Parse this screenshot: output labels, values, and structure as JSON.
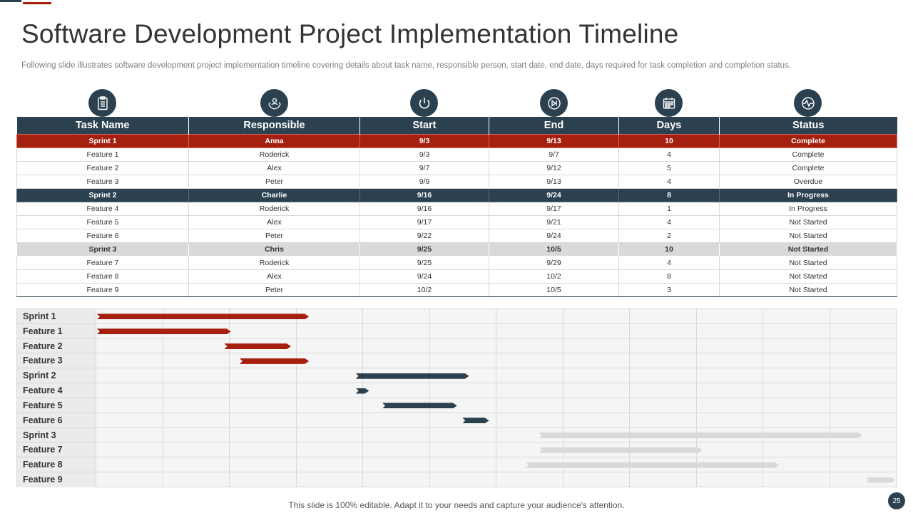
{
  "title": "Software Development Project Implementation Timeline",
  "subtitle": "Following slide illustrates software development project implementation timeline covering details about task name, responsible person, start date, end date, days required for task completion and completion status.",
  "columns": [
    "Task Name",
    "Responsible",
    "Start",
    "End",
    "Days",
    "Status"
  ],
  "column_icons": [
    "clipboard-icon",
    "team-hands-icon",
    "power-icon",
    "skip-next-icon",
    "calendar-icon",
    "heartbeat-icon"
  ],
  "rows": [
    {
      "type": "sprint",
      "style": "red",
      "task": "Sprint 1",
      "responsible": "Anna",
      "start": "9/3",
      "end": "9/13",
      "days": "10",
      "status": "Complete"
    },
    {
      "type": "feature",
      "task": "Feature 1",
      "responsible": "Roderick",
      "start": "9/3",
      "end": "9/7",
      "days": "4",
      "status": "Complete"
    },
    {
      "type": "feature",
      "task": "Feature 2",
      "responsible": "Alex",
      "start": "9/7",
      "end": "9/12",
      "days": "5",
      "status": "Complete"
    },
    {
      "type": "feature",
      "task": "Feature 3",
      "responsible": "Peter",
      "start": "9/9",
      "end": "9/13",
      "days": "4",
      "status": "Overdue"
    },
    {
      "type": "sprint",
      "style": "dark",
      "task": "Sprint 2",
      "responsible": "Charlie",
      "start": "9/16",
      "end": "9/24",
      "days": "8",
      "status": "In Progress"
    },
    {
      "type": "feature",
      "task": "Feature 4",
      "responsible": "Roderick",
      "start": "9/16",
      "end": "9/17",
      "days": "1",
      "status": "In Progress"
    },
    {
      "type": "feature",
      "task": "Feature 5",
      "responsible": "Alex",
      "start": "9/17",
      "end": "9/21",
      "days": "4",
      "status": "Not Started"
    },
    {
      "type": "feature",
      "task": "Feature 6",
      "responsible": "Peter",
      "start": "9/22",
      "end": "9/24",
      "days": "2",
      "status": "Not Started"
    },
    {
      "type": "sprint",
      "style": "gray",
      "task": "Sprint 3",
      "responsible": "Chris",
      "start": "9/25",
      "end": "10/5",
      "days": "10",
      "status": "Not Started"
    },
    {
      "type": "feature",
      "task": "Feature 7",
      "responsible": "Roderick",
      "start": "9/25",
      "end": "9/29",
      "days": "4",
      "status": "Not Started"
    },
    {
      "type": "feature",
      "task": "Feature 8",
      "responsible": "Alex",
      "start": "9/24",
      "end": "10/2",
      "days": "8",
      "status": "Not Started"
    },
    {
      "type": "feature",
      "task": "Feature 9",
      "responsible": "Peter",
      "start": "10/2",
      "end": "10/5",
      "days": "3",
      "status": "Not Started"
    }
  ],
  "gantt": {
    "columns": 12,
    "rows": [
      {
        "label": "Sprint 1",
        "start": 0.02,
        "end": 3.2,
        "color": "#a5200f"
      },
      {
        "label": "Feature 1",
        "start": 0.02,
        "end": 2.03,
        "color": "#a5200f"
      },
      {
        "label": "Feature 2",
        "start": 1.93,
        "end": 2.93,
        "color": "#a5200f"
      },
      {
        "label": "Feature 3",
        "start": 2.16,
        "end": 3.2,
        "color": "#a5200f"
      },
      {
        "label": "Sprint 2",
        "start": 3.9,
        "end": 5.6,
        "color": "#2b4150"
      },
      {
        "label": "Feature 4",
        "start": 3.9,
        "end": 4.1,
        "color": "#2b4150"
      },
      {
        "label": "Feature 5",
        "start": 4.3,
        "end": 5.42,
        "color": "#2b4150"
      },
      {
        "label": "Feature 6",
        "start": 5.5,
        "end": 5.9,
        "color": "#2b4150"
      },
      {
        "label": "Sprint 3",
        "start": 6.65,
        "end": 11.5,
        "color": "#d9d9d9"
      },
      {
        "label": "Feature 7",
        "start": 6.65,
        "end": 9.1,
        "color": "#d9d9d9"
      },
      {
        "label": "Feature 8",
        "start": 6.45,
        "end": 10.25,
        "color": "#d9d9d9"
      },
      {
        "label": "Feature 9",
        "start": 11.55,
        "end": 11.99,
        "color": "#d9d9d9"
      }
    ]
  },
  "footer": "This slide is 100% editable. Adapt it to your needs and capture your audience's attention.",
  "page_number": "25",
  "colors": {
    "accent_red": "#a5200f",
    "dark": "#2b4150",
    "light_gray": "#d9d9d9"
  }
}
